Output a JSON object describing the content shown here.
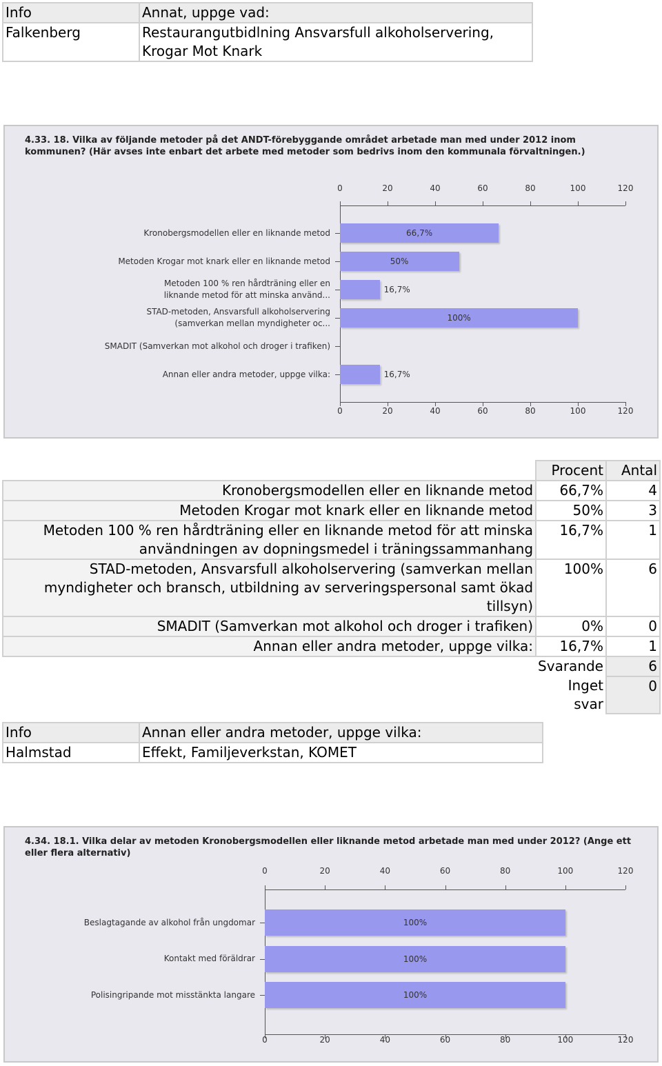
{
  "table_1": {
    "header": [
      "Info",
      "Annat, uppge vad:"
    ],
    "rows": [
      [
        "Falkenberg",
        "Restaurangutbidlning Ansvarsfull alkoholservering, Krogar Mot Knark"
      ]
    ]
  },
  "chart_data": [
    {
      "type": "bar",
      "orientation": "horizontal",
      "title": "4.33. 18. Vilka av följande metoder på det ANDT-förebyggande området arbetade man med under 2012 inom kommunen? (Här avses inte enbart det arbete med metoder som bedrivs inom den kommunala förvaltningen.)",
      "categories": [
        "Kronobergsmodellen eller en liknande metod",
        "Metoden Krogar mot knark eller en liknande metod",
        "Metoden 100 % ren hårdträning eller en\nliknande metod för att minska använd...",
        "STAD-metoden, Ansvarsfull alkoholservering\n(samverkan mellan myndigheter oc...",
        "SMADIT (Samverkan mot alkohol och droger i trafiken)",
        "Annan eller andra metoder, uppge vilka:"
      ],
      "values": [
        66.7,
        50,
        16.7,
        100,
        0,
        16.7
      ],
      "value_labels": [
        "66,7%",
        "50%",
        "16,7%",
        "100%",
        null,
        "16,7%"
      ],
      "color": "#9898ee",
      "xlim": [
        0,
        120
      ],
      "xticks": [
        0,
        20,
        40,
        60,
        80,
        100,
        120
      ]
    },
    {
      "type": "bar",
      "orientation": "horizontal",
      "title": "4.34. 18.1. Vilka delar av metoden Kronobergsmodellen eller liknande metod arbetade man med under 2012? (Ange ett eller flera alternativ)",
      "categories": [
        "Beslagtagande av alkohol från ungdomar",
        "Kontakt med föräldrar",
        "Polisingripande mot misstänkta langare"
      ],
      "values": [
        100,
        100,
        100
      ],
      "value_labels": [
        "100%",
        "100%",
        "100%"
      ],
      "color": "#9898ee",
      "xlim": [
        0,
        120
      ],
      "xticks": [
        0,
        20,
        40,
        60,
        80,
        100,
        120
      ]
    }
  ],
  "results_table": {
    "headers": [
      "Procent",
      "Antal"
    ],
    "rows": [
      {
        "label": "Kronobergsmodellen eller en liknande metod",
        "percent": "66,7%",
        "count": "4"
      },
      {
        "label": "Metoden Krogar mot knark eller en liknande metod",
        "percent": "50%",
        "count": "3"
      },
      {
        "label": "Metoden 100 % ren hårdträning eller en liknande metod för att minska användningen av dopningsmedel i träningssammanhang",
        "percent": "16,7%",
        "count": "1"
      },
      {
        "label": "STAD-metoden, Ansvarsfull alkoholservering (samverkan mellan myndigheter och bransch, utbildning av serveringspersonal samt ökad tillsyn)",
        "percent": "100%",
        "count": "6"
      },
      {
        "label": "SMADIT (Samverkan mot alkohol och droger i trafiken)",
        "percent": "0%",
        "count": "0"
      },
      {
        "label": "Annan eller andra metoder, uppge vilka:",
        "percent": "16,7%",
        "count": "1"
      }
    ],
    "summary": [
      {
        "label": "Svarande",
        "count": "6"
      },
      {
        "label": "Inget svar",
        "count": "0"
      }
    ]
  },
  "table_2": {
    "header": [
      "Info",
      "Annan eller andra metoder, uppge vilka:"
    ],
    "rows": [
      [
        "Halmstad",
        "Effekt, Familjeverkstan, KOMET"
      ]
    ]
  }
}
